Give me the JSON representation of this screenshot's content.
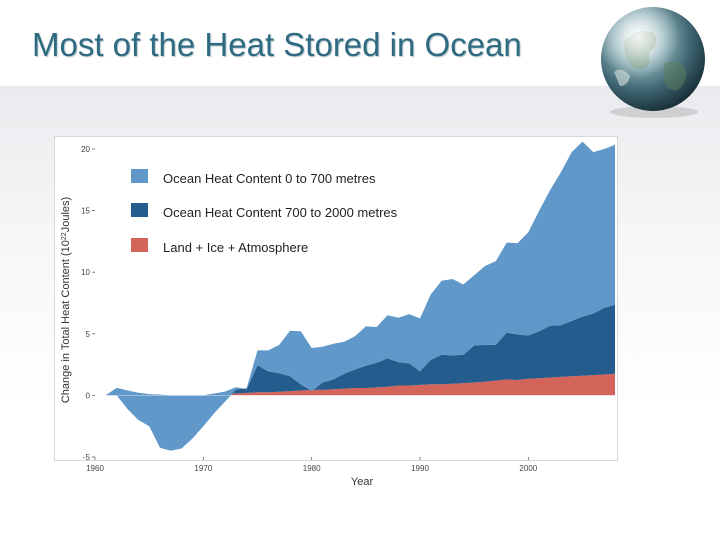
{
  "slide": {
    "title": "Most of the Heat Stored in Ocean"
  },
  "colors": {
    "title": "#2e6a80",
    "upper_ocean": "#6098c9",
    "deep_ocean": "#255c8e",
    "land_ice_atm": "#d2645a"
  },
  "chart_data": {
    "type": "area",
    "title": "",
    "xlabel": "Year",
    "ylabel": "Change in Total Heat Content (10²²Joules)",
    "ylabel_prefix": "Change in Total Heat Content (10",
    "ylabel_exp": "22",
    "ylabel_suffix": "Joules)",
    "xlim": [
      1960,
      2008
    ],
    "ylim": [
      -5,
      20
    ],
    "xticks": [
      1960,
      1970,
      1980,
      1990,
      2000
    ],
    "yticks": [
      20,
      15,
      10,
      5,
      0,
      -5
    ],
    "stacking": "stacked",
    "x": [
      1961,
      1962,
      1963,
      1964,
      1965,
      1966,
      1967,
      1968,
      1969,
      1970,
      1971,
      1972,
      1973,
      1974,
      1975,
      1976,
      1977,
      1978,
      1979,
      1980,
      1981,
      1982,
      1983,
      1984,
      1985,
      1986,
      1987,
      1988,
      1989,
      1990,
      1991,
      1992,
      1993,
      1994,
      1995,
      1996,
      1997,
      1998,
      1999,
      2000,
      2001,
      2002,
      2003,
      2004,
      2005,
      2006,
      2007,
      2008
    ],
    "series": [
      {
        "name": "Land + Ice + Atmosphere",
        "color": "#d2645a",
        "values": [
          0,
          0,
          0,
          0,
          0,
          0,
          0,
          0,
          0,
          0,
          0.05,
          0.1,
          0.15,
          0.2,
          0.25,
          0.25,
          0.3,
          0.35,
          0.4,
          0.45,
          0.45,
          0.5,
          0.55,
          0.6,
          0.6,
          0.65,
          0.7,
          0.8,
          0.8,
          0.85,
          0.9,
          0.9,
          0.95,
          1.0,
          1.05,
          1.1,
          1.2,
          1.3,
          1.25,
          1.35,
          1.4,
          1.45,
          1.5,
          1.55,
          1.6,
          1.65,
          1.7,
          1.75
        ]
      },
      {
        "name": "Ocean Heat Content 700 to 2000 metres",
        "color": "#255c8e",
        "values": [
          0,
          0.6,
          0.4,
          0.2,
          0.1,
          0.05,
          0,
          0,
          0,
          0,
          0.1,
          0.2,
          0.5,
          0.3,
          2.2,
          1.7,
          1.5,
          1.2,
          0.5,
          -0.1,
          0.6,
          0.8,
          1.2,
          1.5,
          1.8,
          2.0,
          2.3,
          1.9,
          1.8,
          1.1,
          2.0,
          2.4,
          2.3,
          2.3,
          3.0,
          3.0,
          2.9,
          3.8,
          3.7,
          3.5,
          3.8,
          4.2,
          4.2,
          4.5,
          4.8,
          5.0,
          5.4,
          5.6
        ]
      },
      {
        "name": "Ocean Heat Content 0 to 700 metres",
        "color": "#6098c9",
        "values": [
          0,
          -0.6,
          -1.5,
          -2.2,
          -2.6,
          -4.3,
          -4.5,
          -4.3,
          -3.5,
          -2.5,
          -1.6,
          -0.8,
          -0.2,
          0.1,
          1.2,
          1.7,
          2.3,
          3.7,
          4.3,
          3.5,
          2.9,
          2.9,
          2.6,
          2.7,
          3.2,
          2.9,
          3.5,
          3.6,
          4.0,
          4.3,
          5.3,
          6.0,
          6.2,
          5.7,
          5.7,
          6.4,
          6.8,
          7.3,
          7.4,
          8.4,
          9.8,
          11.0,
          12.4,
          13.7,
          14.2,
          13.1,
          12.9,
          13.0
        ]
      }
    ]
  },
  "legend": {
    "position": "top-left",
    "items": [
      {
        "label": "Ocean Heat Content 0 to 700 metres",
        "color": "#6098c9"
      },
      {
        "label": "Ocean Heat Content 700 to 2000 metres",
        "color": "#255c8e"
      },
      {
        "label": "Land + Ice + Atmosphere",
        "color": "#d2645a"
      }
    ]
  }
}
